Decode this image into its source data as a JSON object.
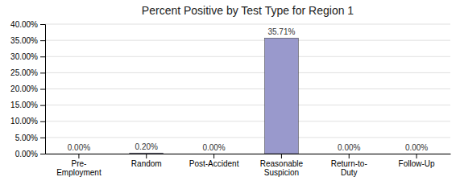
{
  "chart_data": {
    "type": "bar",
    "title": "Percent Positive by Test Type for Region 1",
    "categories": [
      "Pre-\nEmployment",
      "Random",
      "Post-Accident",
      "Reasonable\nSuspicion",
      "Return-to-\nDuty",
      "Follow-Up"
    ],
    "values": [
      0.0,
      0.2,
      0.0,
      35.71,
      0.0,
      0.0
    ],
    "value_labels": [
      "0.00%",
      "0.20%",
      "0.00%",
      "35.71%",
      "0.00%",
      "0.00%"
    ],
    "data_labels": true,
    "color": "#9999CC",
    "ylim": [
      0,
      40
    ],
    "yticks": [
      {
        "value": 0,
        "label": "0.00%"
      },
      {
        "value": 5,
        "label": "5.00%"
      },
      {
        "value": 10,
        "label": "10.00%"
      },
      {
        "value": 15,
        "label": "15.00%"
      },
      {
        "value": 20,
        "label": "20.00%"
      },
      {
        "value": 25,
        "label": "25.00%"
      },
      {
        "value": 30,
        "label": "30.00%"
      },
      {
        "value": 35,
        "label": "35.00%"
      },
      {
        "value": 40,
        "label": "40.00%"
      }
    ],
    "grid": true
  }
}
